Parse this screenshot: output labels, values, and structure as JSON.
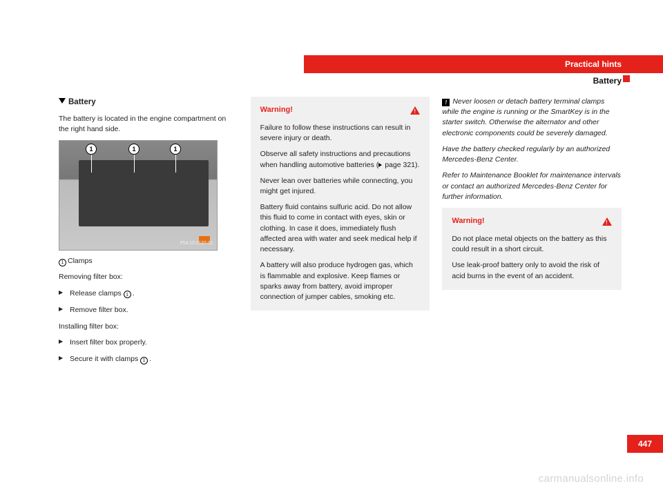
{
  "header": {
    "chapter": "Practical hints",
    "section": "Battery"
  },
  "col1": {
    "title": "Battery",
    "intro": "The battery is located in the engine compartment on the right hand side.",
    "fig": {
      "label": "P54.10-2137-31",
      "callout": "1"
    },
    "clamps_label": "Clamps",
    "removing_title": "Removing filter box:",
    "step_release_a": "Release clamps ",
    "step_release_b": ".",
    "step_remove": "Remove filter box.",
    "installing_title": "Installing filter box:",
    "step_insert": "Insert filter box properly.",
    "step_secure_a": "Secure it with clamps ",
    "step_secure_b": ".",
    "num": "1"
  },
  "col2": {
    "warning_title": "Warning!",
    "p1": "Failure to follow these instructions can result in severe injury or death.",
    "p2a": "Observe all safety instructions and precautions when handling automotive batteries (",
    "p2b": " page 321).",
    "p3": "Never lean over batteries while connecting, you might get injured.",
    "p4": "Battery fluid contains sulfuric acid. Do not allow this fluid to come in contact with eyes, skin or clothing. In case it does, immediately flush affected area with water and seek medical help if necessary.",
    "p5": "A battery will also produce hydrogen gas, which is flammable and explosive. Keep flames or sparks away from battery, avoid improper connection of jumper cables, smoking etc."
  },
  "col3": {
    "note1": "Never loosen or detach battery terminal clamps while the engine is running or the SmartKey is in the starter switch. Otherwise the alternator and other electronic components could be severely damaged.",
    "note2": "Have the battery checked regularly by an authorized Mercedes-Benz Center.",
    "note3": "Refer to Maintenance Booklet for maintenance intervals or contact an authorized Mercedes-Benz Center for further information.",
    "warning_title": "Warning!",
    "w1": "Do not place metal objects on the battery as this could result in a short circuit.",
    "w2": "Use leak-proof battery only to avoid the risk of acid burns in the event of an accident.",
    "excl": "!"
  },
  "footer": {
    "page": "447",
    "watermark": "carmanualsonline.info"
  }
}
